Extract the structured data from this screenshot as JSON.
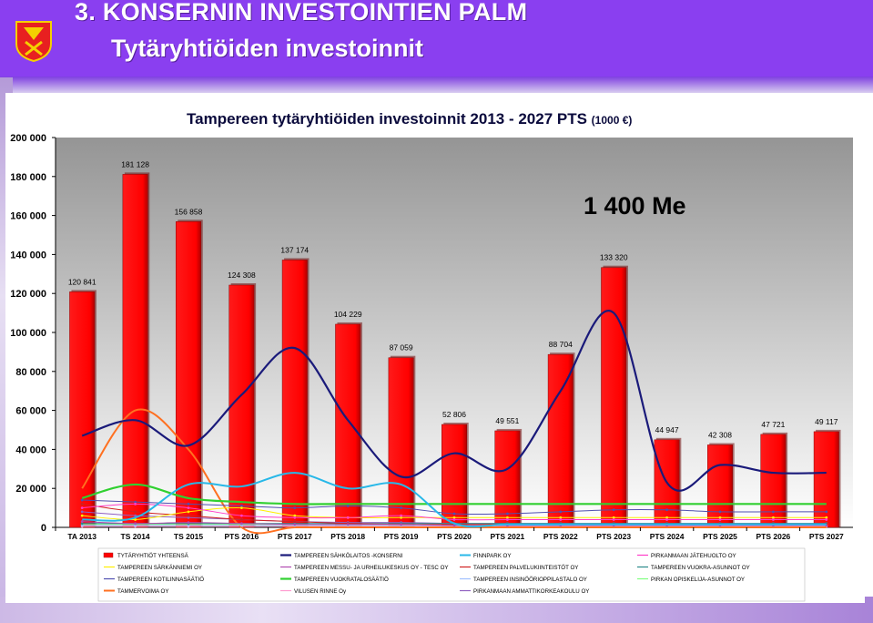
{
  "header": {
    "title_line1": "3. KONSERNIN INVESTOINTIEN PALM",
    "title_line2": "Tytäryhtiöiden investoinnit"
  },
  "annotation": "1 400 Me",
  "colors": {
    "header_bg": "#8a3ff0",
    "plot_bg_top": "#9a9a9a",
    "plot_bg_bottom": "#ffffff",
    "bar": "#ff0000"
  },
  "chart_data": {
    "type": "bar",
    "title": "Tampereen tytäryhtiöiden investoinnit 2013 - 2027 PTS",
    "title_unit": "(1000 €)",
    "categories": [
      "TA 2013",
      "TS 2014",
      "TS 2015",
      "PTS 2016",
      "PTS 2017",
      "PTS 2018",
      "PTS 2019",
      "PTS 2020",
      "PTS 2021",
      "PTS 2022",
      "PTS 2023",
      "PTS 2024",
      "PTS 2025",
      "PTS 2026",
      "PTS 2027"
    ],
    "ylim": [
      0,
      200000
    ],
    "yticks": [
      "0",
      "20 000",
      "40 000",
      "60 000",
      "80 000",
      "100 000",
      "120 000",
      "140 000",
      "160 000",
      "180 000",
      "200 000"
    ],
    "grid": false,
    "legend_position": "bottom",
    "bars": {
      "name": "TYTÄRYHTIÖT YHTEENSÄ",
      "color": "#ff0000",
      "values": [
        120841,
        181128,
        156858,
        124308,
        137174,
        104229,
        87059,
        52806,
        49551,
        88704,
        133320,
        44947,
        42308,
        47721,
        49117
      ],
      "labels": [
        "120 841",
        "181 128",
        "156 858",
        "124 308",
        "137 174",
        "104 229",
        "87 059",
        "52 806",
        "49 551",
        "88 704",
        "133 320",
        "44 947",
        "42 308",
        "47 721",
        "49 117"
      ]
    },
    "series": [
      {
        "name": "TAMPEREEN SÄHKÖLAITOS -KONSERNI",
        "color": "#1a1a7a",
        "width": 2.2,
        "values": [
          47000,
          55000,
          42000,
          68000,
          92000,
          55000,
          26000,
          38000,
          30000,
          70000,
          110000,
          23000,
          32000,
          28000,
          28000
        ]
      },
      {
        "name": "FINNPARK OY",
        "color": "#28b8e8",
        "width": 2,
        "values": [
          4000,
          5000,
          22000,
          21000,
          28000,
          20000,
          22000,
          2000,
          1500,
          1500,
          1500,
          1500,
          1500,
          1500,
          1500
        ]
      },
      {
        "name": "PIRKANMAAN JÄTEHUOLTO OY",
        "color": "#ff3cc8",
        "width": 1,
        "values": [
          10000,
          12000,
          10000,
          6000,
          5000,
          5000,
          6000,
          4000,
          4000,
          4000,
          4000,
          4000,
          4000,
          4000,
          4000
        ]
      },
      {
        "name": "TAMPEREEN SÄRKÄNNIEMI OY",
        "color": "#ffee00",
        "width": 1,
        "values": [
          6000,
          4000,
          8000,
          10000,
          6000,
          5000,
          5000,
          5000,
          5000,
          5000,
          5000,
          5000,
          5000,
          5000,
          5000
        ]
      },
      {
        "name": "TAMPEREEN MESSU- JA URHEILUKESKUS OY - TESC OY",
        "color": "#b04ab0",
        "width": 1,
        "values": [
          3000,
          2000,
          2500,
          2000,
          1500,
          1500,
          1500,
          1000,
          1000,
          1000,
          1000,
          1000,
          1000,
          1000,
          1000
        ]
      },
      {
        "name": "TAMPEREEN PALVELUKIINTEISTÖT OY",
        "color": "#d02020",
        "width": 1,
        "values": [
          12000,
          8000,
          6000,
          4000,
          3000,
          2000,
          1500,
          1500,
          1500,
          1500,
          1500,
          1500,
          1500,
          1500,
          1500
        ]
      },
      {
        "name": "TAMPEREEN VUOKRA-ASUNNOT OY",
        "color": "#2a8a8a",
        "width": 1,
        "values": [
          2000,
          2000,
          2000,
          2000,
          2000,
          2000,
          2000,
          2000,
          2000,
          2000,
          2000,
          2000,
          2000,
          2000,
          2000
        ]
      },
      {
        "name": "TAMPEREEN KOTILINNASÄÄTIÖ",
        "color": "#5050b0",
        "width": 1,
        "values": [
          14000,
          13000,
          12000,
          11000,
          10000,
          11000,
          10000,
          7000,
          7000,
          8000,
          9000,
          9000,
          8000,
          8000,
          8000
        ]
      },
      {
        "name": "TAMPEREEN VUOKRATALOSÄÄTIÖ",
        "color": "#30d030",
        "width": 2.2,
        "values": [
          15000,
          22000,
          15000,
          13000,
          12000,
          12000,
          12000,
          12000,
          12000,
          12000,
          12000,
          12000,
          12000,
          12000,
          12000
        ]
      },
      {
        "name": "TAMPEREEN INSINÖÖRIOPPILASTALO OY",
        "color": "#a0c0ff",
        "width": 1,
        "values": [
          1000,
          1000,
          1000,
          1000,
          1000,
          1000,
          1000,
          1000,
          1000,
          1000,
          1000,
          1000,
          1000,
          1000,
          1000
        ]
      },
      {
        "name": "PIRKAN OPISKELIJA-ASUNNOT OY",
        "color": "#80ff80",
        "width": 1,
        "values": [
          1500,
          1500,
          1500,
          1500,
          1500,
          1500,
          1500,
          1500,
          1500,
          1500,
          1500,
          1500,
          1500,
          1500,
          1500
        ]
      },
      {
        "name": "TAMMERVOIMA OY",
        "color": "#ff7020",
        "width": 2,
        "values": [
          20000,
          60000,
          40000,
          0,
          0,
          0,
          0,
          0,
          0,
          0,
          0,
          0,
          0,
          0,
          0
        ]
      },
      {
        "name": "VILUSEN RINNE Oy",
        "color": "#ff9ad0",
        "width": 1,
        "values": [
          500,
          500,
          500,
          500,
          500,
          500,
          500,
          500,
          500,
          500,
          500,
          500,
          500,
          500,
          500
        ]
      },
      {
        "name": "PIRKANMAAN AMMATTIKORKEAKOULU OY",
        "color": "#9060c0",
        "width": 1,
        "values": [
          8000,
          6000,
          5000,
          4000,
          3000,
          2500,
          2500,
          2000,
          2000,
          2000,
          2000,
          2000,
          2000,
          2000,
          2000
        ]
      }
    ]
  }
}
